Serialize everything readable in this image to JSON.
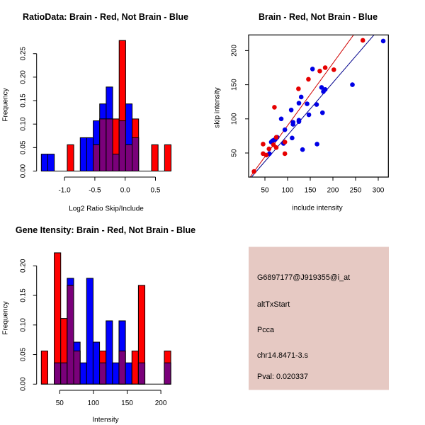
{
  "chart_data": [
    {
      "type": "bar",
      "histogram": true,
      "title": "RatioData: Brain - Red, Not Brain - Blue",
      "xlabel": "Log2 Ratio Skip/Include",
      "ylabel": "Frequency",
      "bin_start": -1.383,
      "bin_width": 0.107,
      "xticks": [
        -1.0,
        -0.5,
        0.0,
        0.5
      ],
      "xtick_labels": [
        "-1.0",
        "-0.5",
        "0.0",
        "0.5"
      ],
      "yticks": [
        0,
        0.05,
        0.1,
        0.15,
        0.2,
        0.25
      ],
      "ytick_labels": [
        "0.00",
        "0.05",
        "0.10",
        "0.15",
        "0.20",
        "0.25"
      ],
      "ylim": [
        0,
        0.28
      ],
      "grid": false,
      "overlap_color": "#7A007A",
      "series": [
        {
          "name": "Not Brain",
          "key": "not-brain",
          "color": "#0000FF",
          "values": [
            0.036,
            0.036,
            0,
            0,
            0,
            0,
            0.071,
            0.071,
            0.107,
            0.143,
            0.179,
            0.036,
            0.107,
            0.143,
            0.071,
            0,
            0,
            0,
            0,
            0
          ]
        },
        {
          "name": "Brain",
          "key": "brain",
          "color": "#FF0000",
          "values": [
            0,
            0,
            0,
            0,
            0.056,
            0,
            0,
            0,
            0.056,
            0.111,
            0.111,
            0.111,
            0.278,
            0.056,
            0.111,
            0,
            0,
            0.056,
            0,
            0.056
          ]
        }
      ]
    },
    {
      "type": "scatter",
      "title": "Brain - Red, Not Brain - Blue",
      "xlabel": "include intensity",
      "ylabel": "skip intensity",
      "xlim": [
        14,
        322
      ],
      "ylim": [
        15,
        223
      ],
      "xticks": [
        50,
        100,
        150,
        200,
        250,
        300
      ],
      "xtick_labels": [
        "50",
        "100",
        "150",
        "200",
        "250",
        "300"
      ],
      "yticks": [
        50,
        100,
        150,
        200
      ],
      "ytick_labels": [
        "50",
        "100",
        "150",
        "200"
      ],
      "grid": false,
      "series": [
        {
          "name": "Not Brain",
          "key": "not-brain",
          "color": "#0000E6",
          "points": [
            [
              311,
              214
            ],
            [
              155,
              173
            ],
            [
              243,
              150
            ],
            [
              175,
              146
            ],
            [
              183,
              143
            ],
            [
              179,
              140
            ],
            [
              130,
              132
            ],
            [
              125,
              123
            ],
            [
              143,
              122
            ],
            [
              164,
              121
            ],
            [
              108,
              113
            ],
            [
              177,
              109
            ],
            [
              147,
              106
            ],
            [
              86,
              100
            ],
            [
              125,
              98
            ],
            [
              125,
              96
            ],
            [
              112,
              95
            ],
            [
              112,
              92
            ],
            [
              94,
              84
            ],
            [
              77,
              73
            ],
            [
              64,
              66
            ],
            [
              67,
              68
            ],
            [
              70,
              69
            ],
            [
              73,
              70
            ],
            [
              91,
              64
            ],
            [
              110,
              72
            ],
            [
              165,
              63
            ],
            [
              133,
              55
            ],
            [
              60,
              49
            ]
          ]
        },
        {
          "name": "Brain",
          "key": "brain",
          "color": "#E60000",
          "points": [
            [
              266,
              215
            ],
            [
              183,
              175
            ],
            [
              171,
              170
            ],
            [
              202,
              172
            ],
            [
              146,
              158
            ],
            [
              124,
              144
            ],
            [
              71,
              117
            ],
            [
              75,
              73
            ],
            [
              69,
              62
            ],
            [
              46,
              63
            ],
            [
              94,
              66
            ],
            [
              75,
              58
            ],
            [
              59,
              56
            ],
            [
              46,
              49
            ],
            [
              53,
              47
            ],
            [
              94,
              49
            ],
            [
              26,
              23
            ]
          ]
        }
      ],
      "fit_lines": [
        {
          "name": "Brain fit",
          "key": "brain",
          "color": "#D00000",
          "intercept": -1.0,
          "slope": 0.912
        },
        {
          "name": "Not Brain fit",
          "key": "not-brain",
          "color": "#00008B",
          "intercept": -0.9,
          "slope": 0.77
        }
      ]
    },
    {
      "type": "bar",
      "histogram": true,
      "title": "Gene Itensity: Brain - Red, Not Brain - Blue",
      "xlabel": "Intensity",
      "ylabel": "Frequency",
      "bin_start": 22.7,
      "bin_width": 9.6,
      "xticks": [
        50,
        100,
        150,
        200
      ],
      "xtick_labels": [
        "50",
        "100",
        "150",
        "200"
      ],
      "yticks": [
        0,
        0.05,
        0.1,
        0.15,
        0.2
      ],
      "ytick_labels": [
        "0.00",
        "0.05",
        "0.10",
        "0.15",
        "0.20"
      ],
      "ylim": [
        0,
        0.23
      ],
      "grid": false,
      "overlap_color": "#7A007A",
      "series": [
        {
          "name": "Not Brain",
          "key": "not-brain",
          "color": "#0000FF",
          "values": [
            0,
            0,
            0.036,
            0.036,
            0.179,
            0.071,
            0.036,
            0.179,
            0.071,
            0.036,
            0.107,
            0.036,
            0.107,
            0.036,
            0,
            0.036,
            0,
            0,
            0,
            0.036
          ]
        },
        {
          "name": "Brain",
          "key": "brain",
          "color": "#FF0000",
          "values": [
            0.056,
            0,
            0.222,
            0.111,
            0.167,
            0.056,
            0,
            0,
            0,
            0.056,
            0,
            0,
            0.056,
            0,
            0.056,
            0.167,
            0,
            0,
            0,
            0.056
          ]
        }
      ]
    }
  ],
  "info_panel": {
    "background_color": "#E6C9C3",
    "probe_set": "G6897177@J919355@i_at",
    "event_type": "altTxStart",
    "gene": "Pcca",
    "cluster": "chr14.8471-3.s",
    "pval_text": "Pval: 0.020337",
    "pval_color": "#A31515"
  }
}
